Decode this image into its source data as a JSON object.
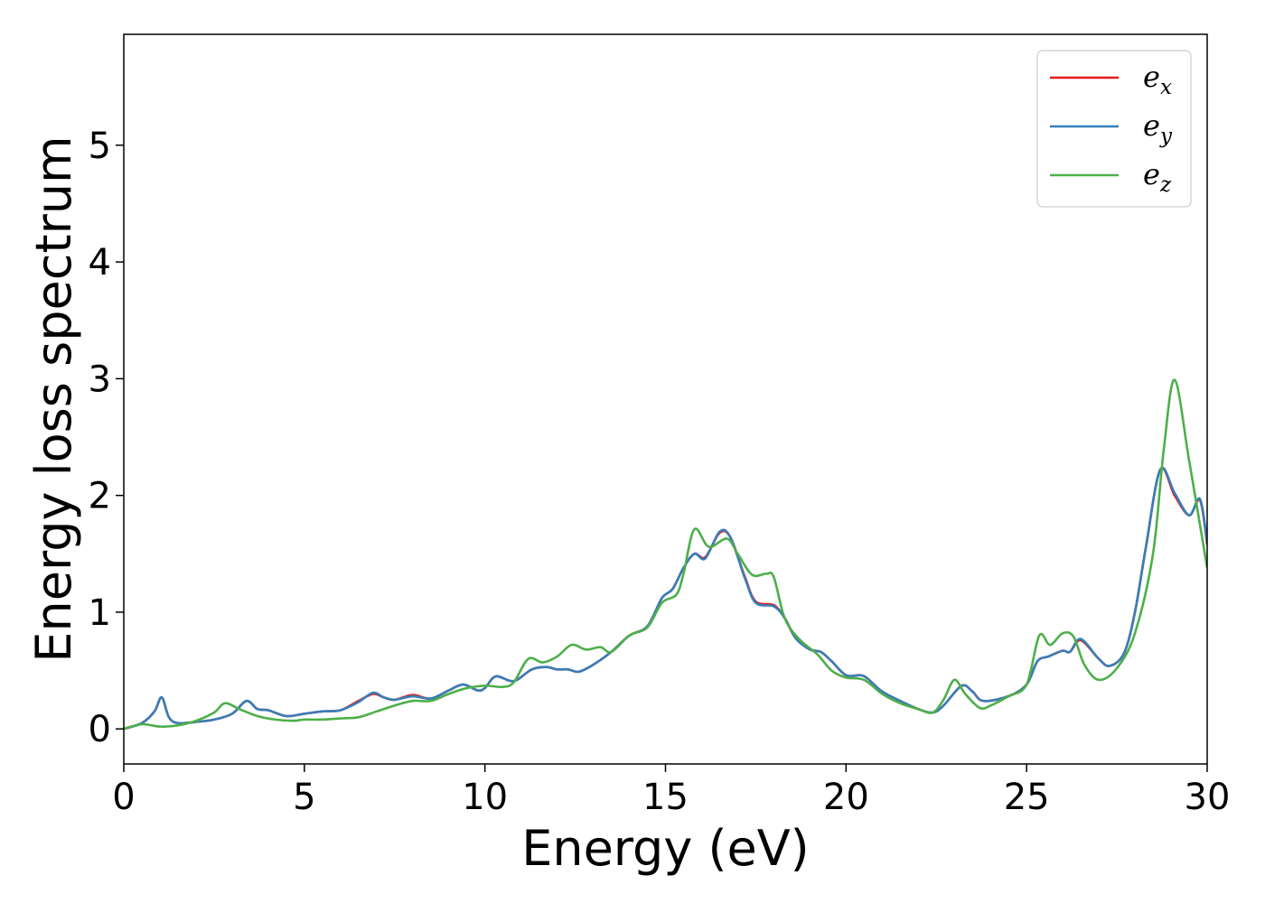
{
  "chart_data": {
    "type": "line",
    "xlabel": "Energy (eV)",
    "ylabel": "Energy loss spectrum",
    "xlim": [
      0,
      30
    ],
    "ylim": [
      -0.3,
      5.95
    ],
    "xticks": [
      0,
      5,
      10,
      15,
      20,
      25,
      30
    ],
    "yticks": [
      0,
      1,
      2,
      3,
      4,
      5
    ],
    "xtick_labels": [
      "0",
      "5",
      "10",
      "15",
      "20",
      "25",
      "30"
    ],
    "ytick_labels": [
      "0",
      "1",
      "2",
      "3",
      "4",
      "5"
    ],
    "grid": false,
    "legend_position": "top-right",
    "series": [
      {
        "name": "e_x",
        "label_base": "e",
        "label_sub": "x",
        "color": "#e41a1c",
        "points": [
          [
            0,
            0.0
          ],
          [
            0.5,
            0.05
          ],
          [
            0.85,
            0.15
          ],
          [
            1.05,
            0.27
          ],
          [
            1.25,
            0.1
          ],
          [
            1.5,
            0.05
          ],
          [
            2.0,
            0.06
          ],
          [
            2.5,
            0.08
          ],
          [
            3.0,
            0.13
          ],
          [
            3.4,
            0.24
          ],
          [
            3.7,
            0.17
          ],
          [
            4.0,
            0.16
          ],
          [
            4.5,
            0.11
          ],
          [
            5.0,
            0.13
          ],
          [
            5.5,
            0.15
          ],
          [
            6.0,
            0.16
          ],
          [
            6.5,
            0.24
          ],
          [
            6.9,
            0.3
          ],
          [
            7.2,
            0.27
          ],
          [
            7.5,
            0.25
          ],
          [
            8.0,
            0.29
          ],
          [
            8.5,
            0.26
          ],
          [
            9.0,
            0.33
          ],
          [
            9.4,
            0.38
          ],
          [
            9.8,
            0.33
          ],
          [
            10.0,
            0.35
          ],
          [
            10.3,
            0.45
          ],
          [
            10.8,
            0.41
          ],
          [
            11.3,
            0.51
          ],
          [
            11.7,
            0.53
          ],
          [
            12.0,
            0.51
          ],
          [
            12.3,
            0.51
          ],
          [
            12.6,
            0.49
          ],
          [
            13.0,
            0.55
          ],
          [
            13.5,
            0.66
          ],
          [
            14.0,
            0.8
          ],
          [
            14.5,
            0.88
          ],
          [
            14.9,
            1.12
          ],
          [
            15.2,
            1.2
          ],
          [
            15.5,
            1.38
          ],
          [
            15.8,
            1.5
          ],
          [
            16.1,
            1.47
          ],
          [
            16.5,
            1.68
          ],
          [
            16.8,
            1.64
          ],
          [
            17.2,
            1.3
          ],
          [
            17.5,
            1.09
          ],
          [
            18.0,
            1.06
          ],
          [
            18.3,
            0.95
          ],
          [
            18.6,
            0.78
          ],
          [
            19.0,
            0.68
          ],
          [
            19.3,
            0.66
          ],
          [
            19.6,
            0.58
          ],
          [
            20.0,
            0.46
          ],
          [
            20.4,
            0.46
          ],
          [
            20.6,
            0.43
          ],
          [
            21.0,
            0.32
          ],
          [
            21.5,
            0.24
          ],
          [
            22.0,
            0.17
          ],
          [
            22.4,
            0.14
          ],
          [
            22.7,
            0.2
          ],
          [
            23.2,
            0.37
          ],
          [
            23.5,
            0.32
          ],
          [
            23.8,
            0.24
          ],
          [
            24.5,
            0.28
          ],
          [
            25.0,
            0.38
          ],
          [
            25.3,
            0.58
          ],
          [
            25.6,
            0.62
          ],
          [
            26.0,
            0.67
          ],
          [
            26.2,
            0.66
          ],
          [
            26.5,
            0.76
          ],
          [
            27.0,
            0.6
          ],
          [
            27.3,
            0.54
          ],
          [
            27.7,
            0.65
          ],
          [
            28.0,
            1.0
          ],
          [
            28.3,
            1.55
          ],
          [
            28.7,
            2.22
          ],
          [
            29.1,
            2.0
          ],
          [
            29.5,
            1.83
          ],
          [
            29.8,
            1.96
          ],
          [
            30.0,
            1.58
          ]
        ]
      },
      {
        "name": "e_y",
        "label_base": "e",
        "label_sub": "y",
        "color": "#377eb8",
        "points": [
          [
            0,
            0.0
          ],
          [
            0.5,
            0.05
          ],
          [
            0.85,
            0.15
          ],
          [
            1.05,
            0.27
          ],
          [
            1.25,
            0.1
          ],
          [
            1.5,
            0.05
          ],
          [
            2.0,
            0.06
          ],
          [
            2.5,
            0.08
          ],
          [
            3.0,
            0.13
          ],
          [
            3.4,
            0.24
          ],
          [
            3.7,
            0.17
          ],
          [
            4.0,
            0.16
          ],
          [
            4.5,
            0.11
          ],
          [
            5.0,
            0.13
          ],
          [
            5.5,
            0.15
          ],
          [
            6.0,
            0.16
          ],
          [
            6.5,
            0.23
          ],
          [
            6.9,
            0.31
          ],
          [
            7.2,
            0.27
          ],
          [
            7.5,
            0.25
          ],
          [
            8.0,
            0.28
          ],
          [
            8.5,
            0.26
          ],
          [
            9.0,
            0.33
          ],
          [
            9.4,
            0.38
          ],
          [
            9.8,
            0.33
          ],
          [
            10.0,
            0.35
          ],
          [
            10.3,
            0.45
          ],
          [
            10.8,
            0.41
          ],
          [
            11.3,
            0.51
          ],
          [
            11.7,
            0.53
          ],
          [
            12.0,
            0.51
          ],
          [
            12.3,
            0.51
          ],
          [
            12.6,
            0.49
          ],
          [
            13.0,
            0.55
          ],
          [
            13.5,
            0.66
          ],
          [
            14.0,
            0.8
          ],
          [
            14.5,
            0.88
          ],
          [
            14.9,
            1.12
          ],
          [
            15.2,
            1.2
          ],
          [
            15.5,
            1.38
          ],
          [
            15.8,
            1.5
          ],
          [
            16.1,
            1.46
          ],
          [
            16.5,
            1.69
          ],
          [
            16.8,
            1.64
          ],
          [
            17.2,
            1.29
          ],
          [
            17.5,
            1.08
          ],
          [
            18.0,
            1.05
          ],
          [
            18.3,
            0.95
          ],
          [
            18.6,
            0.78
          ],
          [
            19.0,
            0.68
          ],
          [
            19.3,
            0.66
          ],
          [
            19.6,
            0.58
          ],
          [
            20.0,
            0.46
          ],
          [
            20.4,
            0.46
          ],
          [
            20.6,
            0.43
          ],
          [
            21.0,
            0.32
          ],
          [
            21.5,
            0.24
          ],
          [
            22.0,
            0.17
          ],
          [
            22.4,
            0.14
          ],
          [
            22.7,
            0.2
          ],
          [
            23.2,
            0.37
          ],
          [
            23.5,
            0.32
          ],
          [
            23.8,
            0.24
          ],
          [
            24.5,
            0.28
          ],
          [
            25.0,
            0.38
          ],
          [
            25.3,
            0.58
          ],
          [
            25.6,
            0.62
          ],
          [
            26.0,
            0.67
          ],
          [
            26.2,
            0.66
          ],
          [
            26.5,
            0.77
          ],
          [
            27.0,
            0.6
          ],
          [
            27.3,
            0.54
          ],
          [
            27.7,
            0.65
          ],
          [
            28.0,
            1.0
          ],
          [
            28.3,
            1.55
          ],
          [
            28.7,
            2.22
          ],
          [
            29.1,
            2.02
          ],
          [
            29.5,
            1.83
          ],
          [
            29.8,
            1.97
          ],
          [
            30.0,
            1.6
          ]
        ]
      },
      {
        "name": "e_z",
        "label_base": "e",
        "label_sub": "z",
        "color": "#4daf4a",
        "points": [
          [
            0,
            0.0
          ],
          [
            0.5,
            0.04
          ],
          [
            1.0,
            0.02
          ],
          [
            1.5,
            0.03
          ],
          [
            2.0,
            0.07
          ],
          [
            2.5,
            0.14
          ],
          [
            2.8,
            0.22
          ],
          [
            3.2,
            0.17
          ],
          [
            3.7,
            0.11
          ],
          [
            4.2,
            0.08
          ],
          [
            4.7,
            0.07
          ],
          [
            5.0,
            0.08
          ],
          [
            5.5,
            0.08
          ],
          [
            6.0,
            0.09
          ],
          [
            6.5,
            0.1
          ],
          [
            7.0,
            0.15
          ],
          [
            7.5,
            0.2
          ],
          [
            8.0,
            0.24
          ],
          [
            8.5,
            0.24
          ],
          [
            9.0,
            0.3
          ],
          [
            9.5,
            0.35
          ],
          [
            10.0,
            0.37
          ],
          [
            10.5,
            0.36
          ],
          [
            10.8,
            0.4
          ],
          [
            11.2,
            0.6
          ],
          [
            11.6,
            0.57
          ],
          [
            12.0,
            0.62
          ],
          [
            12.4,
            0.72
          ],
          [
            12.8,
            0.68
          ],
          [
            13.2,
            0.7
          ],
          [
            13.5,
            0.66
          ],
          [
            14.0,
            0.8
          ],
          [
            14.5,
            0.87
          ],
          [
            14.9,
            1.08
          ],
          [
            15.3,
            1.15
          ],
          [
            15.5,
            1.33
          ],
          [
            15.8,
            1.71
          ],
          [
            16.2,
            1.56
          ],
          [
            16.7,
            1.63
          ],
          [
            17.0,
            1.5
          ],
          [
            17.4,
            1.32
          ],
          [
            17.8,
            1.33
          ],
          [
            18.0,
            1.3
          ],
          [
            18.3,
            0.95
          ],
          [
            18.7,
            0.77
          ],
          [
            19.2,
            0.64
          ],
          [
            19.6,
            0.5
          ],
          [
            20.0,
            0.44
          ],
          [
            20.5,
            0.42
          ],
          [
            21.0,
            0.3
          ],
          [
            21.5,
            0.22
          ],
          [
            22.0,
            0.17
          ],
          [
            22.4,
            0.14
          ],
          [
            22.7,
            0.25
          ],
          [
            23.0,
            0.42
          ],
          [
            23.3,
            0.3
          ],
          [
            23.7,
            0.18
          ],
          [
            24.0,
            0.2
          ],
          [
            24.5,
            0.28
          ],
          [
            25.0,
            0.38
          ],
          [
            25.35,
            0.8
          ],
          [
            25.65,
            0.72
          ],
          [
            26.0,
            0.82
          ],
          [
            26.3,
            0.79
          ],
          [
            26.6,
            0.55
          ],
          [
            27.0,
            0.42
          ],
          [
            27.5,
            0.52
          ],
          [
            28.0,
            0.82
          ],
          [
            28.5,
            1.5
          ],
          [
            28.8,
            2.4
          ],
          [
            29.1,
            2.99
          ],
          [
            29.5,
            2.3
          ],
          [
            30.0,
            1.38
          ]
        ]
      }
    ]
  }
}
